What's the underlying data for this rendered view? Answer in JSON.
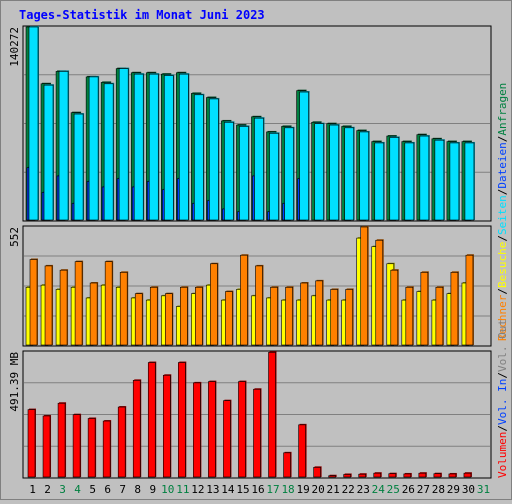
{
  "title": "Tages-Statistik im Monat Juni 2023",
  "colors": {
    "background": "#c0c0c0",
    "title": "#0000ff",
    "anfragen": "#008040",
    "dateien": "#0040ff",
    "seiten": "#00e0ff",
    "besuche": "#ffff00",
    "rechner": "#ff8000",
    "volumen": "#ff0000",
    "weekend_day": "#008040",
    "weekday": "#000000"
  },
  "right_legend": {
    "top": [
      {
        "text": "Anfragen",
        "color": "#008040"
      },
      {
        "text": "Dateien",
        "color": "#0040ff"
      },
      {
        "text": "Seiten",
        "color": "#00e0ff"
      },
      {
        "text": "Besuche",
        "color": "#ffff00"
      },
      {
        "text": "Rechner",
        "color": "#ff8000"
      }
    ],
    "bottom": [
      {
        "text": "Vol. Out",
        "color": "#808080"
      },
      {
        "text": "Vol. In",
        "color": "#0040ff"
      },
      {
        "text": "Volumen",
        "color": "#ff0000"
      }
    ]
  },
  "chart_data": [
    {
      "type": "bar",
      "panel": "hits",
      "ylabel": "140272",
      "ylim": [
        0,
        140272
      ],
      "grid": true,
      "categories": [
        "1",
        "2",
        "3",
        "4",
        "5",
        "6",
        "7",
        "8",
        "9",
        "10",
        "11",
        "12",
        "13",
        "14",
        "15",
        "16",
        "17",
        "18",
        "19",
        "20",
        "21",
        "22",
        "23",
        "24",
        "25",
        "26",
        "27",
        "28",
        "29",
        "30",
        "31"
      ],
      "series": [
        {
          "name": "Anfragen",
          "color": "#008040",
          "values": [
            140272,
            99000,
            108000,
            78000,
            104000,
            100000,
            110000,
            107000,
            107000,
            106000,
            107000,
            92000,
            89000,
            72000,
            69000,
            75000,
            64000,
            68000,
            94000,
            71000,
            70000,
            68000,
            65000,
            57000,
            61000,
            57000,
            62000,
            59000,
            57000,
            57000,
            0
          ]
        },
        {
          "name": "Dateien",
          "color": "#0040ff",
          "values": [
            38000,
            20000,
            32000,
            12000,
            28000,
            24000,
            30000,
            24000,
            28000,
            22000,
            30000,
            12000,
            14000,
            8000,
            6000,
            32000,
            6000,
            12000,
            30000,
            0,
            0,
            0,
            0,
            0,
            0,
            0,
            0,
            0,
            0,
            0,
            0
          ]
        },
        {
          "name": "Seiten",
          "color": "#00e0ff",
          "values": [
            140272,
            98000,
            108000,
            77000,
            104000,
            99000,
            110000,
            106000,
            106000,
            105000,
            106000,
            91000,
            88000,
            71000,
            68000,
            74000,
            63000,
            67000,
            93000,
            70000,
            69000,
            67000,
            64000,
            56000,
            60000,
            56000,
            61000,
            58000,
            56000,
            56000,
            0
          ]
        }
      ]
    },
    {
      "type": "bar",
      "panel": "visits",
      "ylabel": "552",
      "ylim": [
        0,
        552
      ],
      "grid": true,
      "categories": [
        "1",
        "2",
        "3",
        "4",
        "5",
        "6",
        "7",
        "8",
        "9",
        "10",
        "11",
        "12",
        "13",
        "14",
        "15",
        "16",
        "17",
        "18",
        "19",
        "20",
        "21",
        "22",
        "23",
        "24",
        "25",
        "26",
        "27",
        "28",
        "29",
        "30",
        "31"
      ],
      "series": [
        {
          "name": "Besuche",
          "color": "#ffff00",
          "values": [
            270,
            280,
            260,
            270,
            220,
            280,
            270,
            220,
            210,
            230,
            180,
            240,
            280,
            210,
            260,
            230,
            220,
            210,
            210,
            230,
            210,
            210,
            500,
            460,
            380,
            210,
            250,
            210,
            240,
            290,
            0
          ]
        },
        {
          "name": "Rechner",
          "color": "#ff8000",
          "values": [
            400,
            370,
            350,
            390,
            290,
            390,
            340,
            240,
            270,
            240,
            270,
            270,
            380,
            250,
            420,
            370,
            270,
            270,
            290,
            300,
            260,
            260,
            552,
            490,
            350,
            270,
            340,
            270,
            340,
            420,
            0
          ]
        }
      ]
    },
    {
      "type": "bar",
      "panel": "volume",
      "ylabel": "491.39 MB",
      "ylim": [
        0,
        491.39
      ],
      "grid": true,
      "categories": [
        "1",
        "2",
        "3",
        "4",
        "5",
        "6",
        "7",
        "8",
        "9",
        "10",
        "11",
        "12",
        "13",
        "14",
        "15",
        "16",
        "17",
        "18",
        "19",
        "20",
        "21",
        "22",
        "23",
        "24",
        "25",
        "26",
        "27",
        "28",
        "29",
        "30",
        "31"
      ],
      "series": [
        {
          "name": "Volumen",
          "color": "#ff0000",
          "values": [
            265,
            240,
            290,
            245,
            230,
            220,
            275,
            380,
            450,
            400,
            450,
            370,
            375,
            300,
            375,
            345,
            490,
            95,
            205,
            38,
            5,
            10,
            11,
            15,
            13,
            12,
            15,
            13,
            12,
            15,
            0
          ]
        }
      ]
    }
  ],
  "x_axis": {
    "labels": [
      "1",
      "2",
      "3",
      "4",
      "5",
      "6",
      "7",
      "8",
      "9",
      "10",
      "11",
      "12",
      "13",
      "14",
      "15",
      "16",
      "17",
      "18",
      "19",
      "20",
      "21",
      "22",
      "23",
      "24",
      "25",
      "26",
      "27",
      "28",
      "29",
      "30",
      "31"
    ],
    "weekend": [
      "3",
      "4",
      "10",
      "11",
      "17",
      "18",
      "24",
      "25",
      "31"
    ]
  }
}
